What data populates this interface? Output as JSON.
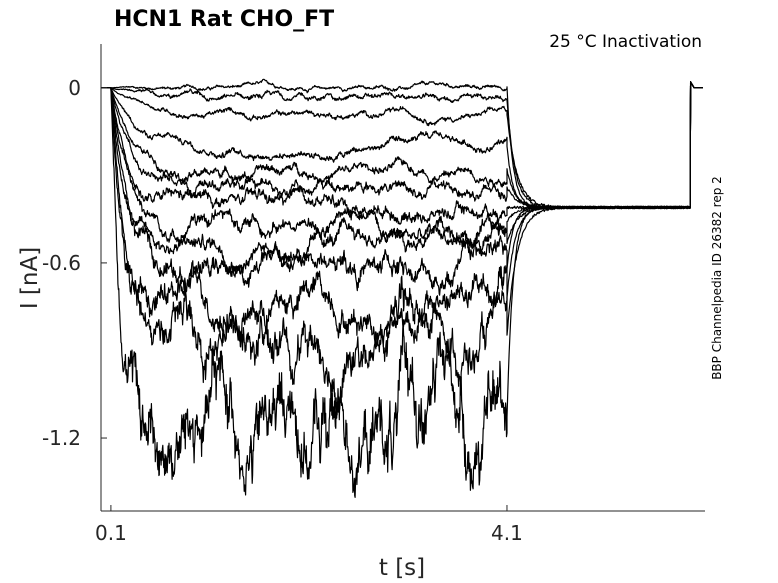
{
  "chart_data": {
    "type": "line",
    "title": "HCN1  Rat  CHO_FT",
    "subtitle": "25 °C  Inactivation",
    "xlabel": "t [s]",
    "ylabel": "I [nA]",
    "side_note": "BBP Channelpedia ID 26382 rep 2",
    "xlim": [
      0,
      6.1
    ],
    "ylim": [
      -1.45,
      0.15
    ],
    "x_ticks": [
      0.1,
      4.1
    ],
    "x_tick_labels": [
      "0.1",
      "4.1"
    ],
    "y_ticks": [
      0,
      -0.6,
      -1.2
    ],
    "y_tick_labels": [
      "0",
      "-0.6",
      "-1.2"
    ],
    "step_start": 0.1,
    "step_end": 4.1,
    "test_level": -0.41,
    "test_end": 5.95,
    "grid": false,
    "series": [
      {
        "steady": 0.0,
        "tau": 0.3,
        "noise": 0.002
      },
      {
        "steady": -0.04,
        "tau": 0.4,
        "noise": 0.003
      },
      {
        "steady": -0.09,
        "tau": 0.3,
        "noise": 0.003
      },
      {
        "steady": -0.2,
        "tau": 0.25,
        "noise": 0.004
      },
      {
        "steady": -0.28,
        "tau": 0.22,
        "noise": 0.005
      },
      {
        "steady": -0.34,
        "tau": 0.2,
        "noise": 0.006
      },
      {
        "steady": -0.41,
        "tau": 0.18,
        "noise": 0.007
      },
      {
        "steady": -0.46,
        "tau": 0.17,
        "noise": 0.008
      },
      {
        "steady": -0.53,
        "tau": 0.16,
        "noise": 0.009
      },
      {
        "steady": -0.62,
        "tau": 0.15,
        "noise": 0.012
      },
      {
        "steady": -0.72,
        "tau": 0.14,
        "noise": 0.016
      },
      {
        "steady": -0.85,
        "tau": 0.13,
        "noise": 0.022
      },
      {
        "steady": -1.13,
        "tau": 0.12,
        "noise": 0.04
      }
    ]
  }
}
